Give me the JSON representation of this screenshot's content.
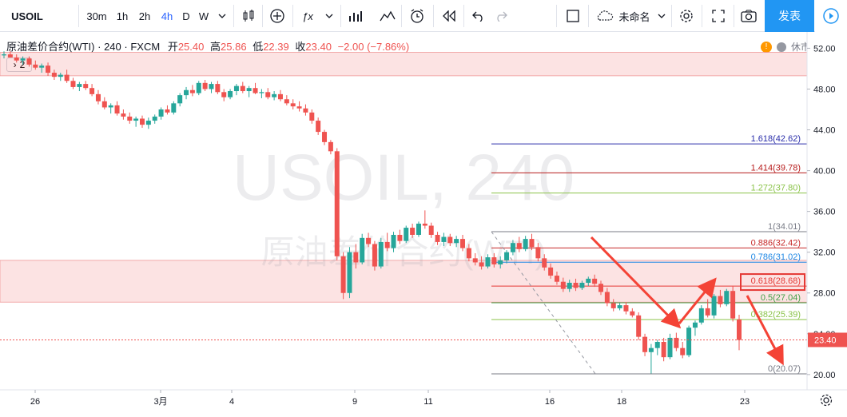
{
  "toolbar": {
    "symbol": "USOIL",
    "intervals": [
      "30m",
      "1h",
      "2h",
      "4h",
      "D",
      "W"
    ],
    "active_interval": "4h",
    "layout_name": "未命名",
    "publish_label": "发表"
  },
  "legend": {
    "name": "原油差价合约(WTI)",
    "interval": "240",
    "source": "FXCM",
    "open_label": "开",
    "open": "25.40",
    "high_label": "高",
    "high": "25.86",
    "low_label": "低",
    "low": "22.39",
    "close_label": "收",
    "close": "23.40",
    "change": "−2.00 (−7.86%)",
    "collapse_label": "2"
  },
  "status": {
    "market_label": "休市"
  },
  "watermark": {
    "line1": "USOIL, 240",
    "line2": "原油差价合约(WTI)"
  },
  "chart_data": {
    "type": "candlestick",
    "symbol": "USOIL",
    "interval": "240",
    "ylim": [
      18.5,
      53.6
    ],
    "y_ticks": [
      52.0,
      48.0,
      44.0,
      40.0,
      36.0,
      32.0,
      28.0,
      24.0,
      20.0
    ],
    "x_tick_labels": [
      "26",
      "3月",
      "4",
      "9",
      "11",
      "16",
      "18",
      "23"
    ],
    "last_price": 23.4,
    "resistance_zones": [
      [
        49.3,
        51.6
      ],
      [
        27.1,
        31.2
      ]
    ],
    "fib_levels": [
      {
        "ratio": "1.618",
        "price": 42.62,
        "label": "1.618(42.62)",
        "color": "#2a2eaa"
      },
      {
        "ratio": "1.414",
        "price": 39.78,
        "label": "1.414(39.78)",
        "color": "#b71c1c"
      },
      {
        "ratio": "1.272",
        "price": 37.8,
        "label": "1.272(37.80)",
        "color": "#8bc34a"
      },
      {
        "ratio": "1",
        "price": 34.01,
        "label": "1(34.01)",
        "color": "#787b86"
      },
      {
        "ratio": "0.886",
        "price": 32.42,
        "label": "0.886(32.42)",
        "color": "#c62828"
      },
      {
        "ratio": "0.786",
        "price": 31.02,
        "label": "0.786(31.02)",
        "color": "#1e88e5"
      },
      {
        "ratio": "0.618",
        "price": 28.68,
        "label": "0.618(28.68)",
        "color": "#e53935"
      },
      {
        "ratio": "0.5",
        "price": 27.04,
        "label": "0.5(27.04)",
        "color": "#43a047"
      },
      {
        "ratio": "0.382",
        "price": 25.39,
        "label": "0.382(25.39)",
        "color": "#8bc34a"
      },
      {
        "ratio": "0",
        "price": 20.07,
        "label": "0(20.07)",
        "color": "#787b86"
      }
    ],
    "candles": [
      {
        "o": 51.3,
        "h": 51.7,
        "l": 51.0,
        "c": 51.4
      },
      {
        "o": 51.4,
        "h": 51.7,
        "l": 51.1,
        "c": 51.1
      },
      {
        "o": 51.1,
        "h": 51.4,
        "l": 50.6,
        "c": 50.8
      },
      {
        "o": 50.8,
        "h": 51.2,
        "l": 50.4,
        "c": 51.0
      },
      {
        "o": 51.0,
        "h": 51.2,
        "l": 50.2,
        "c": 50.4
      },
      {
        "o": 50.4,
        "h": 50.8,
        "l": 49.9,
        "c": 50.1
      },
      {
        "o": 50.1,
        "h": 50.5,
        "l": 49.6,
        "c": 50.3
      },
      {
        "o": 50.3,
        "h": 50.6,
        "l": 49.3,
        "c": 49.6
      },
      {
        "o": 49.6,
        "h": 49.9,
        "l": 48.9,
        "c": 49.2
      },
      {
        "o": 49.2,
        "h": 49.6,
        "l": 48.8,
        "c": 49.4
      },
      {
        "o": 49.4,
        "h": 49.9,
        "l": 48.6,
        "c": 48.8
      },
      {
        "o": 48.8,
        "h": 49.1,
        "l": 48.0,
        "c": 48.2
      },
      {
        "o": 48.2,
        "h": 48.7,
        "l": 47.8,
        "c": 48.5
      },
      {
        "o": 48.5,
        "h": 48.8,
        "l": 47.9,
        "c": 48.1
      },
      {
        "o": 48.1,
        "h": 48.5,
        "l": 47.3,
        "c": 47.5
      },
      {
        "o": 47.5,
        "h": 47.9,
        "l": 46.5,
        "c": 46.8
      },
      {
        "o": 46.8,
        "h": 47.2,
        "l": 46.0,
        "c": 46.2
      },
      {
        "o": 46.2,
        "h": 46.6,
        "l": 45.6,
        "c": 46.4
      },
      {
        "o": 46.4,
        "h": 46.8,
        "l": 45.4,
        "c": 45.6
      },
      {
        "o": 45.6,
        "h": 46.0,
        "l": 45.0,
        "c": 45.3
      },
      {
        "o": 45.3,
        "h": 45.7,
        "l": 44.6,
        "c": 44.9
      },
      {
        "o": 44.9,
        "h": 45.3,
        "l": 44.3,
        "c": 45.1
      },
      {
        "o": 45.1,
        "h": 45.4,
        "l": 44.2,
        "c": 44.5
      },
      {
        "o": 44.5,
        "h": 45.2,
        "l": 44.1,
        "c": 44.9
      },
      {
        "o": 44.9,
        "h": 45.5,
        "l": 44.6,
        "c": 45.3
      },
      {
        "o": 45.3,
        "h": 46.2,
        "l": 45.0,
        "c": 46.0
      },
      {
        "o": 46.0,
        "h": 46.4,
        "l": 45.5,
        "c": 45.7
      },
      {
        "o": 45.7,
        "h": 46.8,
        "l": 45.5,
        "c": 46.6
      },
      {
        "o": 46.6,
        "h": 47.6,
        "l": 46.3,
        "c": 47.4
      },
      {
        "o": 47.4,
        "h": 48.2,
        "l": 47.0,
        "c": 47.9
      },
      {
        "o": 47.9,
        "h": 48.4,
        "l": 47.3,
        "c": 47.6
      },
      {
        "o": 47.6,
        "h": 48.8,
        "l": 47.4,
        "c": 48.6
      },
      {
        "o": 48.6,
        "h": 48.9,
        "l": 47.8,
        "c": 48.0
      },
      {
        "o": 48.0,
        "h": 48.7,
        "l": 47.6,
        "c": 48.5
      },
      {
        "o": 48.5,
        "h": 48.8,
        "l": 47.5,
        "c": 47.7
      },
      {
        "o": 47.7,
        "h": 48.0,
        "l": 46.8,
        "c": 47.2
      },
      {
        "o": 47.2,
        "h": 48.0,
        "l": 47.0,
        "c": 47.8
      },
      {
        "o": 47.8,
        "h": 48.5,
        "l": 47.4,
        "c": 48.3
      },
      {
        "o": 48.3,
        "h": 48.7,
        "l": 47.6,
        "c": 47.8
      },
      {
        "o": 47.8,
        "h": 48.3,
        "l": 47.2,
        "c": 48.1
      },
      {
        "o": 48.1,
        "h": 48.6,
        "l": 47.5,
        "c": 47.6
      },
      {
        "o": 47.6,
        "h": 48.0,
        "l": 47.1,
        "c": 47.7
      },
      {
        "o": 47.7,
        "h": 48.1,
        "l": 47.0,
        "c": 47.2
      },
      {
        "o": 47.2,
        "h": 47.8,
        "l": 46.9,
        "c": 47.5
      },
      {
        "o": 47.5,
        "h": 47.9,
        "l": 46.8,
        "c": 47.0
      },
      {
        "o": 47.0,
        "h": 47.4,
        "l": 46.4,
        "c": 46.6
      },
      {
        "o": 46.6,
        "h": 47.0,
        "l": 46.0,
        "c": 46.3
      },
      {
        "o": 46.3,
        "h": 46.8,
        "l": 45.8,
        "c": 46.1
      },
      {
        "o": 46.1,
        "h": 46.5,
        "l": 45.4,
        "c": 45.7
      },
      {
        "o": 45.7,
        "h": 46.0,
        "l": 44.6,
        "c": 44.9
      },
      {
        "o": 44.9,
        "h": 45.2,
        "l": 43.5,
        "c": 43.8
      },
      {
        "o": 43.8,
        "h": 44.0,
        "l": 42.5,
        "c": 42.8
      },
      {
        "o": 42.8,
        "h": 43.0,
        "l": 41.6,
        "c": 41.9
      },
      {
        "o": 41.9,
        "h": 42.2,
        "l": 31.2,
        "c": 31.6
      },
      {
        "o": 31.6,
        "h": 32.0,
        "l": 27.4,
        "c": 28.0
      },
      {
        "o": 28.0,
        "h": 32.5,
        "l": 27.5,
        "c": 32.0
      },
      {
        "o": 32.0,
        "h": 32.8,
        "l": 30.4,
        "c": 31.0
      },
      {
        "o": 31.0,
        "h": 33.8,
        "l": 30.8,
        "c": 33.4
      },
      {
        "o": 33.4,
        "h": 33.9,
        "l": 32.5,
        "c": 32.8
      },
      {
        "o": 32.8,
        "h": 33.1,
        "l": 30.2,
        "c": 30.6
      },
      {
        "o": 30.6,
        "h": 33.4,
        "l": 30.4,
        "c": 33.0
      },
      {
        "o": 33.0,
        "h": 33.9,
        "l": 32.1,
        "c": 32.4
      },
      {
        "o": 32.4,
        "h": 34.0,
        "l": 32.0,
        "c": 33.7
      },
      {
        "o": 33.7,
        "h": 34.2,
        "l": 32.8,
        "c": 33.1
      },
      {
        "o": 33.1,
        "h": 34.6,
        "l": 32.9,
        "c": 34.4
      },
      {
        "o": 34.4,
        "h": 34.8,
        "l": 33.4,
        "c": 33.7
      },
      {
        "o": 33.7,
        "h": 35.0,
        "l": 33.5,
        "c": 34.8
      },
      {
        "o": 34.8,
        "h": 36.1,
        "l": 34.3,
        "c": 34.6
      },
      {
        "o": 34.6,
        "h": 34.9,
        "l": 33.4,
        "c": 33.7
      },
      {
        "o": 33.7,
        "h": 34.0,
        "l": 32.7,
        "c": 33.0
      },
      {
        "o": 33.0,
        "h": 33.9,
        "l": 32.6,
        "c": 33.5
      },
      {
        "o": 33.5,
        "h": 33.8,
        "l": 32.6,
        "c": 32.9
      },
      {
        "o": 32.9,
        "h": 33.6,
        "l": 32.5,
        "c": 33.3
      },
      {
        "o": 33.3,
        "h": 33.7,
        "l": 32.1,
        "c": 32.4
      },
      {
        "o": 32.4,
        "h": 32.8,
        "l": 31.1,
        "c": 31.4
      },
      {
        "o": 31.4,
        "h": 31.9,
        "l": 30.7,
        "c": 31.0
      },
      {
        "o": 31.0,
        "h": 31.6,
        "l": 30.3,
        "c": 30.6
      },
      {
        "o": 30.6,
        "h": 31.8,
        "l": 30.4,
        "c": 31.5
      },
      {
        "o": 31.5,
        "h": 31.9,
        "l": 30.5,
        "c": 30.8
      },
      {
        "o": 30.8,
        "h": 31.6,
        "l": 30.4,
        "c": 31.2
      },
      {
        "o": 31.2,
        "h": 32.2,
        "l": 30.9,
        "c": 32.0
      },
      {
        "o": 32.0,
        "h": 33.2,
        "l": 31.7,
        "c": 32.9
      },
      {
        "o": 32.9,
        "h": 33.5,
        "l": 32.0,
        "c": 32.3
      },
      {
        "o": 32.3,
        "h": 33.6,
        "l": 32.1,
        "c": 33.3
      },
      {
        "o": 33.3,
        "h": 33.8,
        "l": 32.2,
        "c": 32.5
      },
      {
        "o": 32.5,
        "h": 32.9,
        "l": 31.1,
        "c": 31.4
      },
      {
        "o": 31.4,
        "h": 31.8,
        "l": 30.2,
        "c": 30.5
      },
      {
        "o": 30.5,
        "h": 30.9,
        "l": 29.4,
        "c": 29.7
      },
      {
        "o": 29.7,
        "h": 30.1,
        "l": 28.8,
        "c": 29.1
      },
      {
        "o": 29.1,
        "h": 29.5,
        "l": 28.1,
        "c": 28.4
      },
      {
        "o": 28.4,
        "h": 29.3,
        "l": 28.1,
        "c": 29.0
      },
      {
        "o": 29.0,
        "h": 29.4,
        "l": 28.2,
        "c": 28.5
      },
      {
        "o": 28.5,
        "h": 29.2,
        "l": 28.3,
        "c": 29.0
      },
      {
        "o": 29.0,
        "h": 29.6,
        "l": 28.7,
        "c": 29.4
      },
      {
        "o": 29.4,
        "h": 29.8,
        "l": 28.6,
        "c": 28.9
      },
      {
        "o": 28.9,
        "h": 29.2,
        "l": 27.8,
        "c": 28.1
      },
      {
        "o": 28.1,
        "h": 28.5,
        "l": 26.7,
        "c": 27.0
      },
      {
        "o": 27.0,
        "h": 27.4,
        "l": 26.2,
        "c": 26.5
      },
      {
        "o": 26.5,
        "h": 27.0,
        "l": 26.3,
        "c": 26.8
      },
      {
        "o": 26.8,
        "h": 27.1,
        "l": 25.9,
        "c": 26.2
      },
      {
        "o": 26.2,
        "h": 26.5,
        "l": 25.6,
        "c": 25.8
      },
      {
        "o": 25.8,
        "h": 26.1,
        "l": 23.4,
        "c": 23.7
      },
      {
        "o": 23.7,
        "h": 24.0,
        "l": 21.8,
        "c": 22.2
      },
      {
        "o": 22.2,
        "h": 23.0,
        "l": 20.1,
        "c": 22.6
      },
      {
        "o": 22.6,
        "h": 23.4,
        "l": 21.9,
        "c": 23.2
      },
      {
        "o": 23.2,
        "h": 23.6,
        "l": 21.3,
        "c": 21.7
      },
      {
        "o": 21.7,
        "h": 24.0,
        "l": 21.5,
        "c": 23.6
      },
      {
        "o": 23.6,
        "h": 24.1,
        "l": 22.3,
        "c": 22.6
      },
      {
        "o": 22.6,
        "h": 23.2,
        "l": 21.6,
        "c": 21.9
      },
      {
        "o": 21.9,
        "h": 24.8,
        "l": 21.7,
        "c": 24.6
      },
      {
        "o": 24.6,
        "h": 25.3,
        "l": 23.8,
        "c": 25.1
      },
      {
        "o": 25.1,
        "h": 26.8,
        "l": 24.9,
        "c": 26.5
      },
      {
        "o": 26.5,
        "h": 27.4,
        "l": 25.6,
        "c": 25.8
      },
      {
        "o": 25.8,
        "h": 27.9,
        "l": 25.5,
        "c": 27.7
      },
      {
        "o": 27.7,
        "h": 28.3,
        "l": 26.6,
        "c": 26.9
      },
      {
        "o": 26.9,
        "h": 28.4,
        "l": 26.7,
        "c": 28.2
      },
      {
        "o": 28.2,
        "h": 28.7,
        "l": 25.2,
        "c": 25.5
      },
      {
        "o": 25.4,
        "h": 25.86,
        "l": 22.39,
        "c": 23.4
      }
    ]
  }
}
